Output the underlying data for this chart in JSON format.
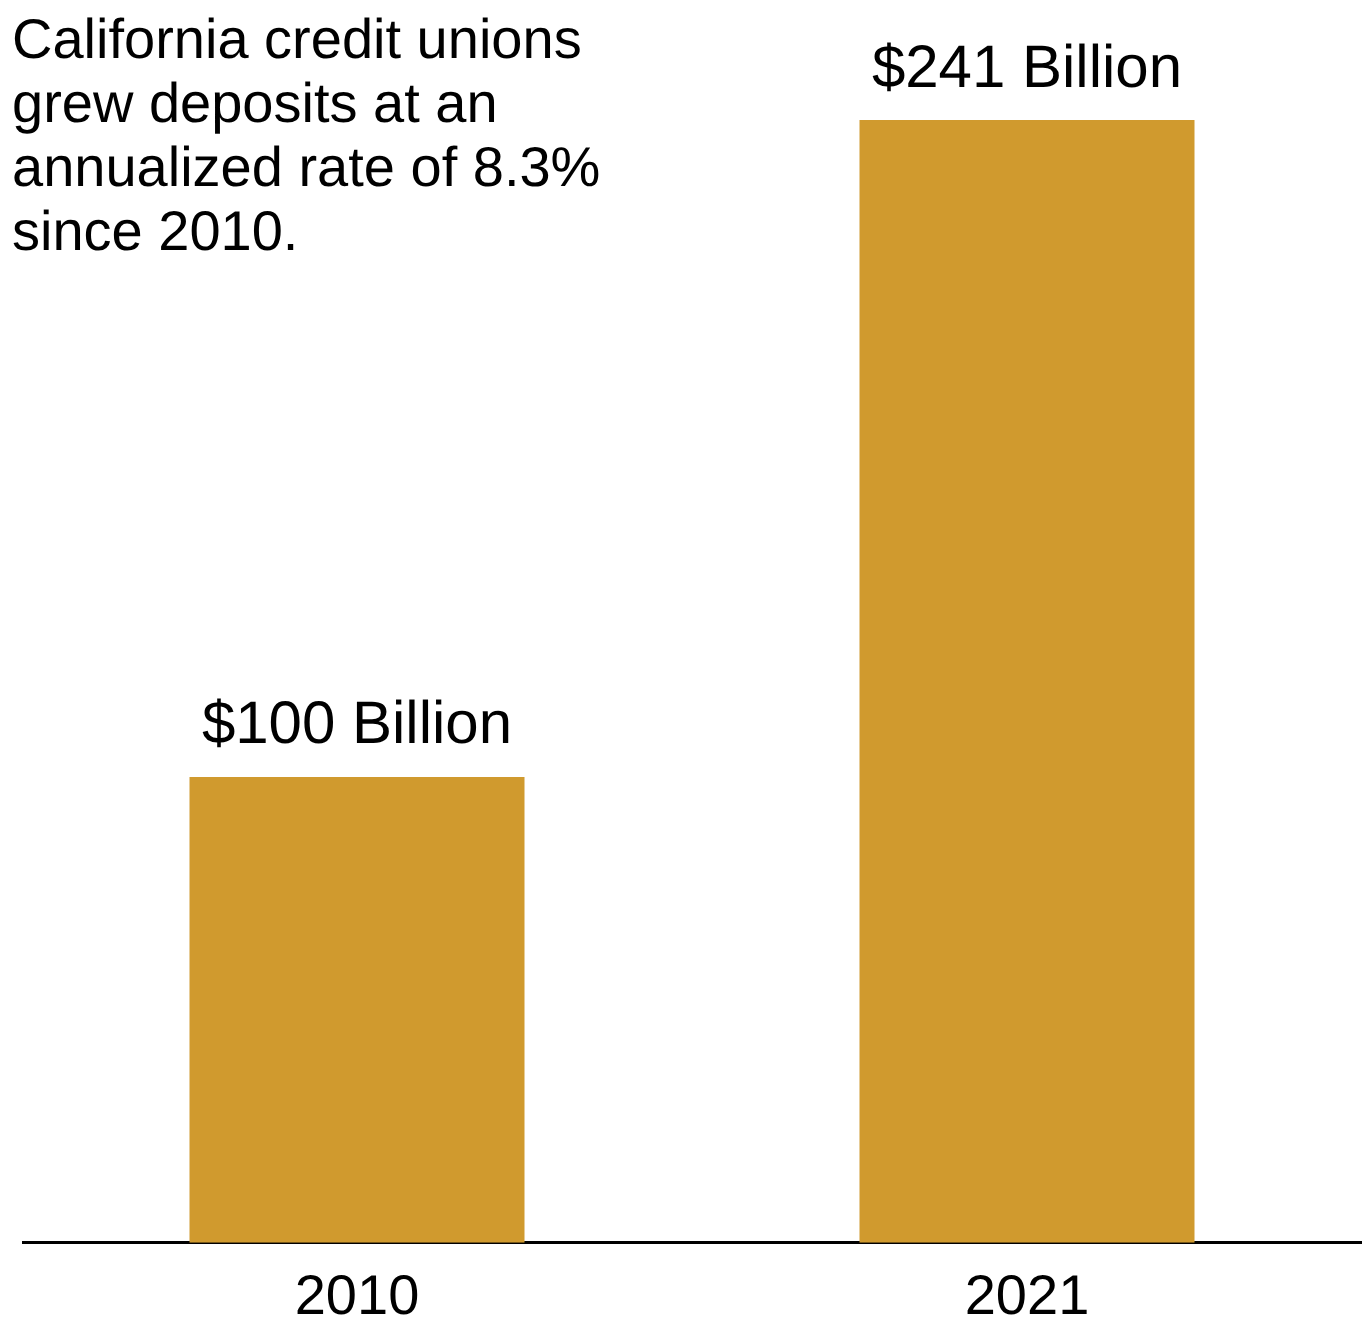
{
  "chart_data": {
    "type": "bar",
    "annotations": [
      "California credit unions grew deposits at an annualized rate of 8.3% since 2010."
    ],
    "categories": [
      "2010",
      "2021"
    ],
    "values": [
      100,
      241
    ],
    "value_labels": [
      "$100 Billion",
      "$241 Billion"
    ],
    "color": "#d09a2e"
  }
}
